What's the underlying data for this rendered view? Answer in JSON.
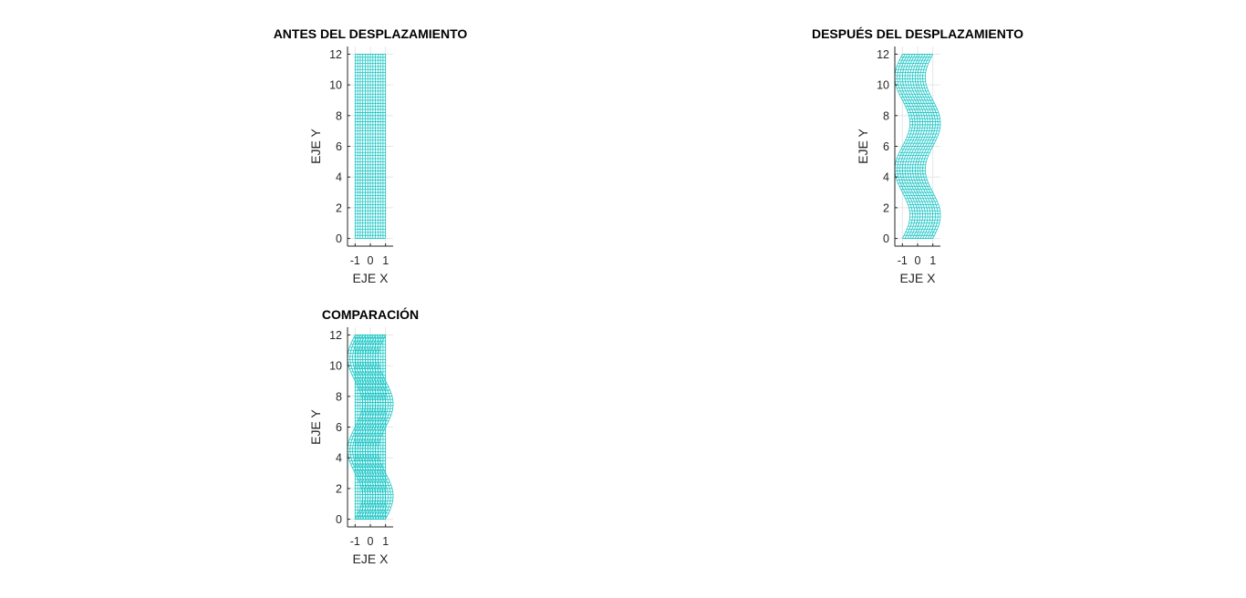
{
  "chart_data": [
    {
      "type": "mesh",
      "title": "ANTES DEL DESPLAZAMIENTO",
      "xlabel": "EJE X",
      "ylabel": "EJE Y",
      "xlim": [
        -1.5,
        1.5
      ],
      "ylim": [
        -0.5,
        12.5
      ],
      "xticks": [
        -1,
        0,
        1
      ],
      "yticks": [
        0,
        2,
        4,
        6,
        8,
        10,
        12
      ],
      "grid": true,
      "mesh": {
        "x_range": [
          -1,
          1
        ],
        "y_range": [
          0,
          12
        ],
        "x_divisions": 12,
        "y_divisions": 60
      },
      "layers": [
        "original"
      ],
      "color": "#1ac6c6"
    },
    {
      "type": "mesh",
      "title": "DESPUÉS DEL DESPLAZAMIENTO",
      "xlabel": "EJE X",
      "ylabel": "EJE Y",
      "xlim": [
        -1.5,
        1.5
      ],
      "ylim": [
        -0.5,
        12.5
      ],
      "xticks": [
        -1,
        0,
        1
      ],
      "yticks": [
        0,
        2,
        4,
        6,
        8,
        10,
        12
      ],
      "grid": true,
      "mesh": {
        "x_range": [
          -1,
          1
        ],
        "y_range": [
          0,
          12
        ],
        "x_divisions": 12,
        "y_divisions": 60
      },
      "displacement": {
        "direction": "x",
        "amplitude": 0.5,
        "period": 6,
        "form": "A*sin(2*pi*y/period)"
      },
      "layers": [
        "displaced"
      ],
      "color": "#1ac6c6"
    },
    {
      "type": "mesh",
      "title": "COMPARACIÓN",
      "xlabel": "EJE X",
      "ylabel": "EJE Y",
      "xlim": [
        -1.5,
        1.5
      ],
      "ylim": [
        -0.5,
        12.5
      ],
      "xticks": [
        -1,
        0,
        1
      ],
      "yticks": [
        0,
        2,
        4,
        6,
        8,
        10,
        12
      ],
      "grid": true,
      "mesh": {
        "x_range": [
          -1,
          1
        ],
        "y_range": [
          0,
          12
        ],
        "x_divisions": 12,
        "y_divisions": 60
      },
      "displacement": {
        "direction": "x",
        "amplitude": 0.5,
        "period": 6,
        "form": "A*sin(2*pi*y/period)"
      },
      "layers": [
        "original",
        "displaced"
      ],
      "color": "#1ac6c6"
    }
  ]
}
